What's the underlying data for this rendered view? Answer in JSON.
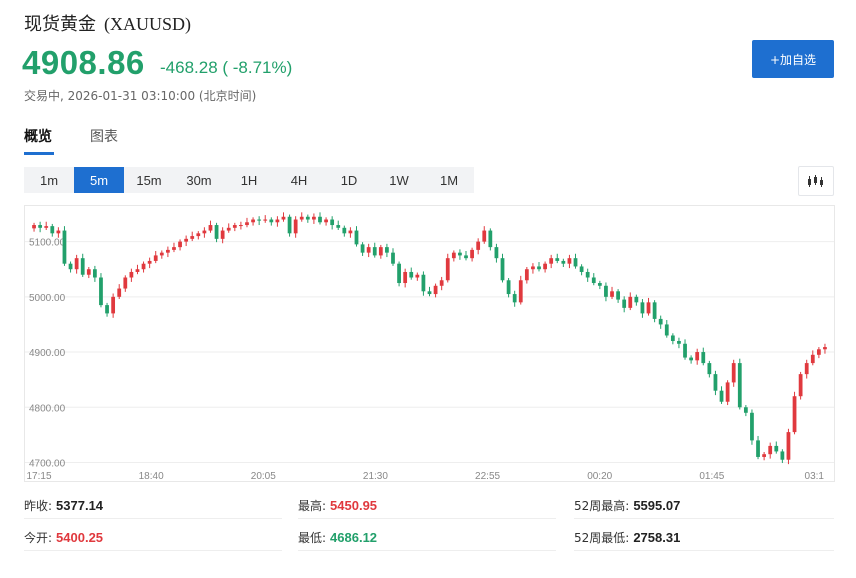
{
  "header": {
    "name": "现货黄金",
    "symbol": "(XAUUSD)",
    "price": "4908.86",
    "change": "-468.28 ( -8.71%)",
    "status": "交易中, 2026-01-31 03:10:00 (北京时间)",
    "add_button": "+加自选"
  },
  "tabs": [
    "概览",
    "图表"
  ],
  "periods": [
    "1m",
    "5m",
    "15m",
    "30m",
    "1H",
    "4H",
    "1D",
    "1W",
    "1M"
  ],
  "selected_period": "5m",
  "stats": {
    "prev_close_label": "昨收:",
    "prev_close": "5377.14",
    "open_label": "今开:",
    "open": "5400.25",
    "high_label": "最高:",
    "high": "5450.95",
    "low_label": "最低:",
    "low": "4686.12",
    "week52_high_label": "52周最高:",
    "week52_high": "5595.07",
    "week52_low_label": "52周最低:",
    "week52_low": "2758.31"
  },
  "colors": {
    "up": "#e0393e",
    "down": "#22a06b",
    "accent": "#1e6fd0"
  },
  "chart_data": {
    "type": "candlestick",
    "y_ticks": [
      "4700.00",
      "4800.00",
      "4900.00",
      "5000.00",
      "5100.00"
    ],
    "x_ticks": [
      "17:15",
      "18:40",
      "20:05",
      "21:30",
      "22:55",
      "00:20",
      "01:45",
      "03:1"
    ],
    "ylim": [
      4690,
      5150
    ],
    "grid": true,
    "closes": [
      5130,
      5125,
      5128,
      5115,
      5120,
      5060,
      5050,
      5070,
      5040,
      5050,
      5035,
      4985,
      4970,
      5000,
      5015,
      5035,
      5045,
      5050,
      5060,
      5065,
      5075,
      5080,
      5085,
      5090,
      5100,
      5105,
      5110,
      5115,
      5120,
      5130,
      5105,
      5120,
      5125,
      5130,
      5130,
      5135,
      5140,
      5138,
      5140,
      5135,
      5140,
      5145,
      5115,
      5140,
      5145,
      5140,
      5145,
      5135,
      5140,
      5130,
      5125,
      5115,
      5120,
      5095,
      5080,
      5090,
      5075,
      5090,
      5080,
      5060,
      5025,
      5045,
      5035,
      5040,
      5010,
      5005,
      5020,
      5030,
      5070,
      5080,
      5075,
      5070,
      5085,
      5100,
      5120,
      5090,
      5070,
      5030,
      5005,
      4990,
      5030,
      5050,
      5055,
      5050,
      5060,
      5070,
      5065,
      5060,
      5070,
      5055,
      5045,
      5035,
      5025,
      5020,
      5000,
      5010,
      4995,
      4980,
      5000,
      4990,
      4970,
      4990,
      4960,
      4950,
      4930,
      4920,
      4915,
      4890,
      4885,
      4900,
      4880,
      4860,
      4830,
      4810,
      4845,
      4880,
      4800,
      4790,
      4740,
      4710,
      4715,
      4730,
      4720,
      4705,
      4755,
      4820,
      4860,
      4880,
      4895,
      4905,
      4909
    ]
  }
}
